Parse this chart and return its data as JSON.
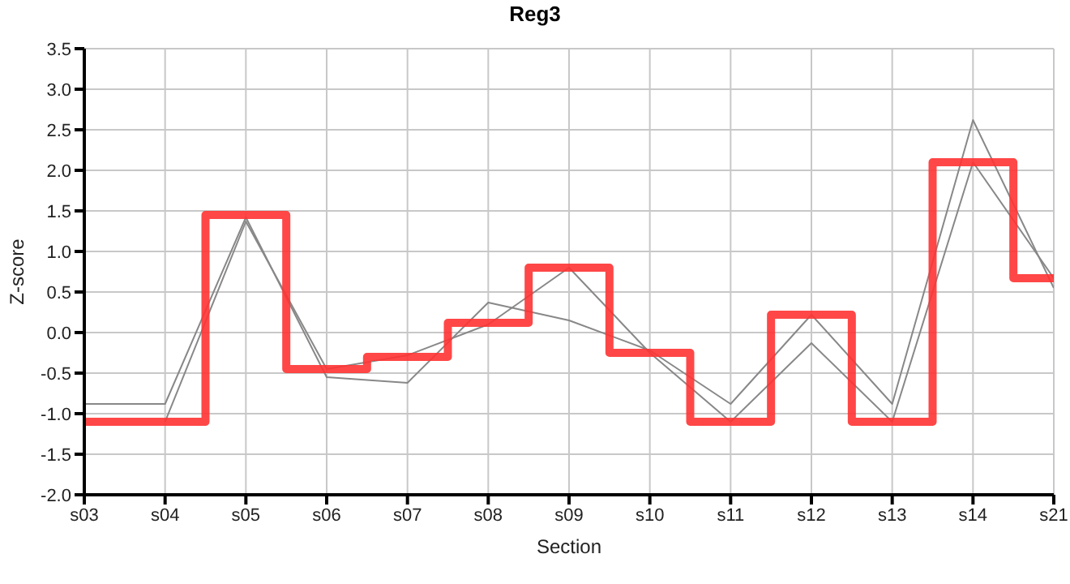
{
  "chart_data": {
    "type": "line",
    "title": "Reg3",
    "xlabel": "Section",
    "ylabel": "Z-score",
    "categories": [
      "s03",
      "s04",
      "s05",
      "s06",
      "s07",
      "s08",
      "s09",
      "s10",
      "s11",
      "s12",
      "s13",
      "s14",
      "s21"
    ],
    "series": [
      {
        "color": "#888888",
        "values": [
          -0.88,
          -0.88,
          1.42,
          -0.55,
          -0.62,
          0.37,
          0.15,
          -0.22,
          -0.88,
          0.22,
          -0.88,
          2.62,
          0.55
        ]
      },
      {
        "color": "#888888",
        "values": [
          null,
          -1.1,
          1.37,
          -0.45,
          -0.28,
          0.1,
          0.8,
          -0.25,
          -1.1,
          -0.13,
          -1.1,
          2.1,
          0.67
        ]
      },
      {
        "type": "step",
        "color": "#ff3333",
        "values": [
          -1.1,
          -1.1,
          1.45,
          -0.45,
          -0.3,
          0.12,
          0.8,
          -0.25,
          -1.1,
          0.22,
          -1.1,
          2.1,
          0.67
        ]
      }
    ],
    "ylim": [
      -2,
      3.5
    ],
    "yticks": [
      {
        "value": -2,
        "label": "-2.0"
      },
      {
        "value": -1.5,
        "label": "-1.5"
      },
      {
        "value": -1,
        "label": "-1.0"
      },
      {
        "value": -0.5,
        "label": "-0.5"
      },
      {
        "value": 0,
        "label": "0.0"
      },
      {
        "value": 0.5,
        "label": "0.5"
      },
      {
        "value": 1,
        "label": "1.0"
      },
      {
        "value": 1.5,
        "label": "1.5"
      },
      {
        "value": 2,
        "label": "2.0"
      },
      {
        "value": 2.5,
        "label": "2.5"
      },
      {
        "value": 3,
        "label": "3.0"
      },
      {
        "value": 3.5,
        "label": "3.5"
      }
    ],
    "grid": true,
    "marker": "none",
    "line_style": "solid"
  }
}
